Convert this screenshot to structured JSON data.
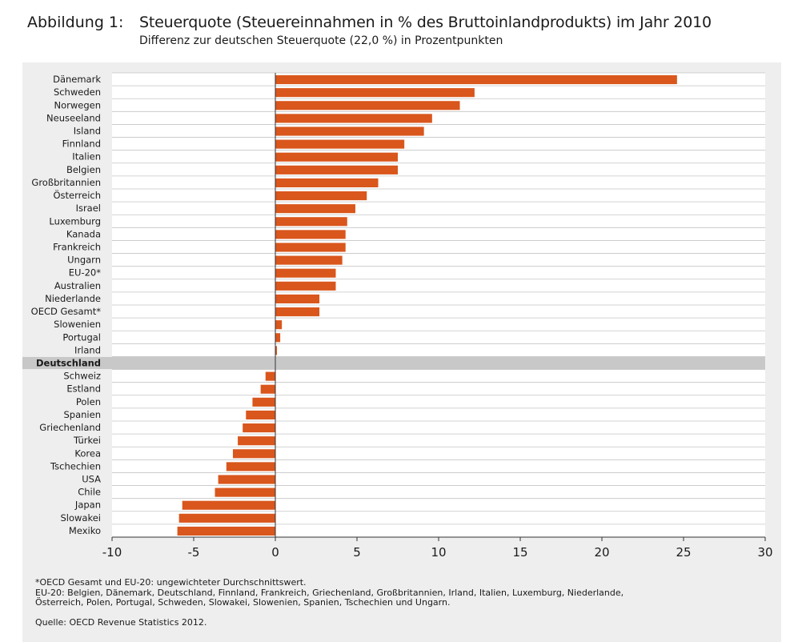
{
  "header": {
    "figure_label": "Abbildung 1:",
    "title": "Steuerquote (Steuereinnahmen in % des Bruttoinlandprodukts) im Jahr 2010",
    "subtitle": "Differenz zur deutschen Steuerquote (22,0 %) in Prozentpunkten"
  },
  "chart_data": {
    "type": "bar",
    "orientation": "horizontal",
    "title": "Steuerquote (Steuereinnahmen in % des Bruttoinlandprodukts) im Jahr 2010",
    "subtitle": "Differenz zur deutschen Steuerquote (22,0 %) in Prozentpunkten",
    "categories": [
      "Dänemark",
      "Schweden",
      "Norwegen",
      "Neuseeland",
      "Island",
      "Finnland",
      "Italien",
      "Belgien",
      "Großbritannien",
      "Österreich",
      "Israel",
      "Luxemburg",
      "Kanada",
      "Frankreich",
      "Ungarn",
      "EU-20*",
      "Australien",
      "Niederlande",
      "OECD Gesamt*",
      "Slowenien",
      "Portugal",
      "Irland",
      "Deutschland",
      "Schweiz",
      "Estland",
      "Polen",
      "Spanien",
      "Griechenland",
      "Türkei",
      "Korea",
      "Tschechien",
      "USA",
      "Chile",
      "Japan",
      "Slowakei",
      "Mexiko"
    ],
    "values": [
      24.6,
      12.2,
      11.3,
      9.6,
      9.1,
      7.9,
      7.5,
      7.5,
      6.3,
      5.6,
      4.9,
      4.4,
      4.3,
      4.3,
      4.1,
      3.7,
      3.7,
      2.7,
      2.7,
      0.4,
      0.3,
      0.1,
      0,
      -0.6,
      -0.9,
      -1.4,
      -1.8,
      -2.0,
      -2.3,
      -2.6,
      -3.0,
      -3.5,
      -3.7,
      -5.7,
      -5.9,
      -6.0
    ],
    "highlight_category": "Deutschland",
    "xlim": [
      -10,
      30
    ],
    "xticks": [
      -10,
      -5,
      0,
      5,
      10,
      15,
      20,
      25,
      30
    ],
    "grid": "horizontal",
    "bar_color": "#d9561c",
    "highlight_color": "#c8c8c8"
  },
  "footnotes": {
    "line1": "*OECD Gesamt und EU-20: ungewichteter Durchschnittswert.",
    "line2": "EU-20: Belgien, Dänemark, Deutschland, Finnland, Frankreich, Griechenland, Großbritannien, Irland, Italien, Luxemburg, Niederlande,",
    "line3": "Österreich, Polen, Portugal,  Schweden, Slowakei,  Slowenien, Spanien, Tschechien und Ungarn.",
    "source": "Quelle: OECD Revenue Statistics 2012."
  }
}
